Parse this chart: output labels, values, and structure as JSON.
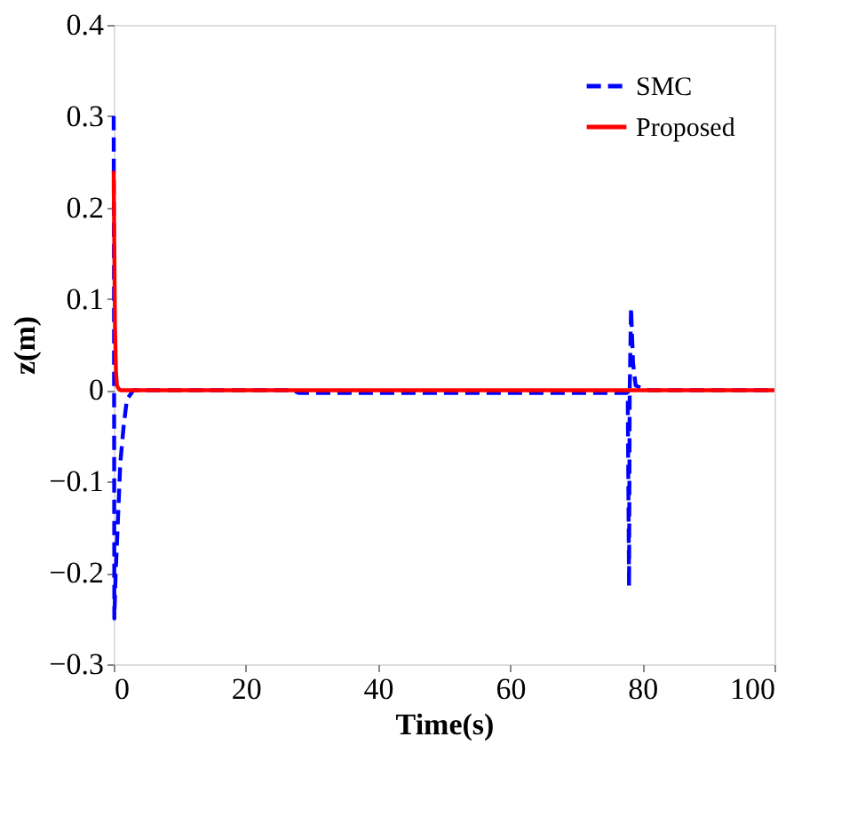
{
  "chart_data": {
    "type": "line",
    "xlabel": "Time(s)",
    "ylabel": "z(m)",
    "xlim": [
      0,
      100
    ],
    "ylim": [
      -0.3,
      0.4
    ],
    "xticks": [
      0,
      20,
      40,
      60,
      80,
      100
    ],
    "yticks": [
      -0.3,
      -0.2,
      -0.1,
      0,
      0.1,
      0.2,
      0.3,
      0.4
    ],
    "grid": false,
    "legend": "top right",
    "marker": "none",
    "series": [
      {
        "name": "SMC",
        "color": "#0000ff",
        "line_style": "dashed",
        "x": [
          0,
          0.05,
          0.1,
          0.3,
          0.6,
          1,
          1.5,
          2,
          3,
          10,
          20,
          27,
          28,
          40,
          60,
          77.8,
          78,
          78.1,
          78.3,
          78.6,
          79,
          80,
          81,
          90,
          100
        ],
        "values": [
          0.3,
          0.1,
          -0.25,
          -0.2,
          -0.15,
          -0.08,
          -0.04,
          -0.01,
          0,
          0,
          0,
          0,
          -0.003,
          -0.003,
          -0.003,
          -0.003,
          -0.215,
          0.0,
          0.09,
          0.03,
          0.005,
          0.002,
          0,
          0,
          0
        ]
      },
      {
        "name": "Proposed",
        "color": "#ff0000",
        "line_style": "solid",
        "x": [
          0,
          0.1,
          0.2,
          0.35,
          0.5,
          0.8,
          1,
          2,
          10,
          50,
          78,
          100
        ],
        "values": [
          0.24,
          0.15,
          0.07,
          0.02,
          0.005,
          0.001,
          0,
          0,
          0,
          0,
          0,
          0
        ]
      }
    ]
  }
}
